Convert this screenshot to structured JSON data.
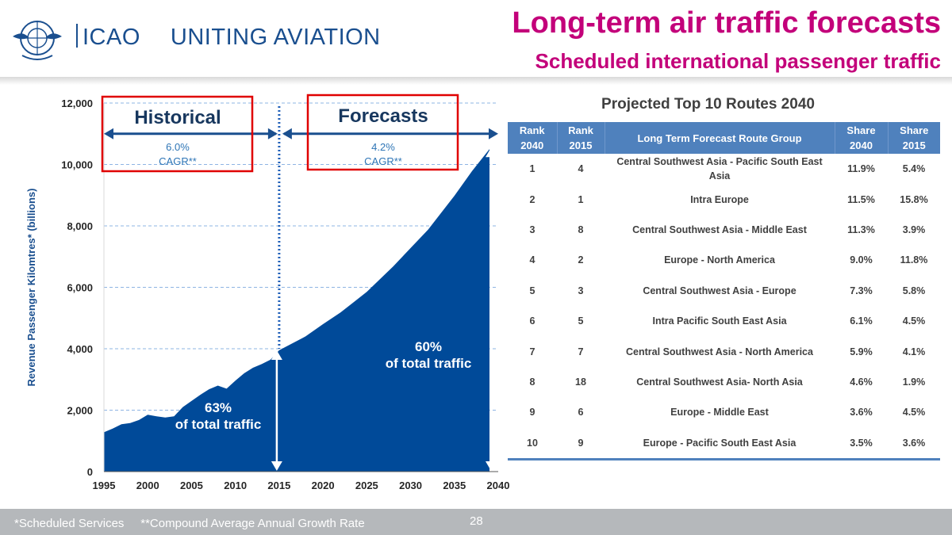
{
  "header": {
    "org_name": "ICAO",
    "tagline": "UNITING AVIATION",
    "title": "Long-term air traffic forecasts",
    "subtitle": "Scheduled international passenger traffic"
  },
  "colors": {
    "accent": "#c3007a",
    "navy": "#004a99",
    "table_header": "#4f81bd",
    "red_box": "#e00000"
  },
  "chart_data": {
    "type": "area",
    "ylabel": "Revenue Passenger Kilomtres* (billions)",
    "xlabel": "",
    "x": [
      1995,
      1996,
      1997,
      1998,
      1999,
      2000,
      2001,
      2002,
      2003,
      2004,
      2005,
      2006,
      2007,
      2008,
      2009,
      2010,
      2011,
      2012,
      2013,
      2014,
      2015,
      2018,
      2020,
      2022,
      2025,
      2028,
      2030,
      2032,
      2035,
      2037,
      2039
    ],
    "values": [
      1280,
      1400,
      1540,
      1580,
      1680,
      1850,
      1800,
      1760,
      1800,
      2100,
      2300,
      2500,
      2680,
      2800,
      2700,
      2960,
      3200,
      3380,
      3500,
      3640,
      3950,
      4400,
      4800,
      5180,
      5850,
      6680,
      7280,
      7880,
      8980,
      9780,
      10500
    ],
    "xlim": [
      1995,
      2040
    ],
    "ylim": [
      0,
      12000
    ],
    "xticks": [
      1995,
      2000,
      2005,
      2010,
      2015,
      2020,
      2025,
      2030,
      2035,
      2040
    ],
    "yticks": [
      0,
      2000,
      4000,
      6000,
      8000,
      10000,
      12000
    ],
    "xtick_labels": [
      "1995",
      "2000",
      "2005",
      "2010",
      "2015",
      "2020",
      "2025",
      "2030",
      "2035",
      "2040"
    ],
    "ytick_labels": [
      "0",
      "2,000",
      "4,000",
      "6,000",
      "8,000",
      "10,000",
      "12,000"
    ],
    "grid": "horizontal dashed",
    "annotations": {
      "historical_label": "Historical",
      "historical_cagr_value": "6.0%",
      "historical_cagr_label": "CAGR**",
      "forecast_label": "Forecasts",
      "forecast_cagr_value": "4.2%",
      "forecast_cagr_label": "CAGR**",
      "share_2015_value": "63%",
      "share_2015_text": "of total traffic",
      "share_2040_value": "60%",
      "share_2040_text": "of total traffic"
    }
  },
  "table": {
    "title": "Projected Top 10 Routes 2040",
    "headers": [
      "Rank 2040",
      "Rank 2015",
      "Long Term Forecast Route Group",
      "Share 2040",
      "Share 2015"
    ],
    "rows": [
      [
        "1",
        "4",
        "Central Southwest Asia - Pacific South East Asia",
        "11.9%",
        "5.4%"
      ],
      [
        "2",
        "1",
        "Intra Europe",
        "11.5%",
        "15.8%"
      ],
      [
        "3",
        "8",
        "Central Southwest Asia - Middle East",
        "11.3%",
        "3.9%"
      ],
      [
        "4",
        "2",
        "Europe - North America",
        "9.0%",
        "11.8%"
      ],
      [
        "5",
        "3",
        "Central Southwest Asia - Europe",
        "7.3%",
        "5.8%"
      ],
      [
        "6",
        "5",
        "Intra Pacific South East Asia",
        "6.1%",
        "4.5%"
      ],
      [
        "7",
        "7",
        "Central Southwest Asia - North America",
        "5.9%",
        "4.1%"
      ],
      [
        "8",
        "18",
        "Central Southwest Asia- North Asia",
        "4.6%",
        "1.9%"
      ],
      [
        "9",
        "6",
        "Europe - Middle East",
        "3.6%",
        "4.5%"
      ],
      [
        "10",
        "9",
        "Europe - Pacific South East Asia",
        "3.5%",
        "3.6%"
      ]
    ]
  },
  "footer": {
    "footnote": "*Scheduled Services     **Compound Average Annual Growth Rate",
    "page_number": "28"
  }
}
